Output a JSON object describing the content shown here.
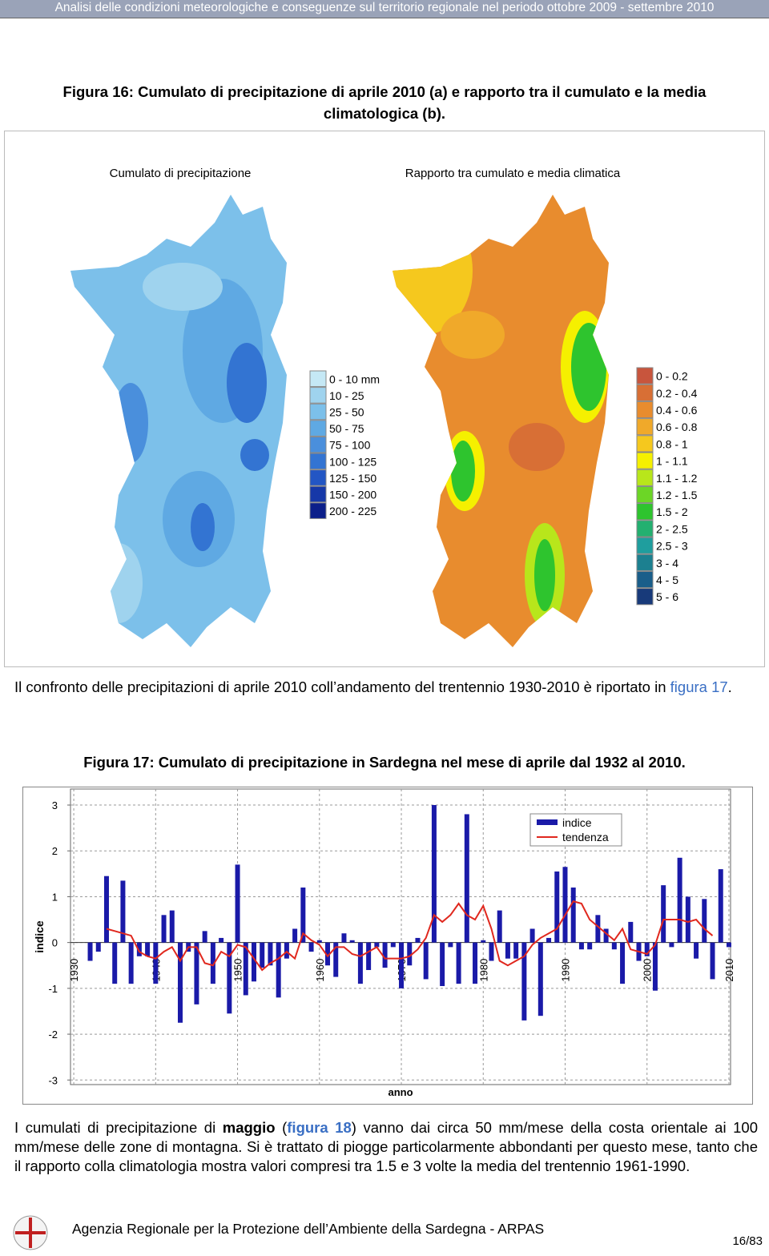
{
  "header": {
    "title": "Analisi delle condizioni meteorologiche e conseguenze sul territorio regionale nel periodo ottobre 2009 - settembre 2010"
  },
  "figure16": {
    "caption": "Figura 16: Cumulato di precipitazione di aprile 2010 (a) e rapporto tra il cumulato e la media climatologica (b).",
    "map_a": {
      "title": "Cumulato di precipitazione",
      "legend": [
        {
          "label": "0 - 10 mm",
          "color": "#c5e8f5"
        },
        {
          "label": "10 - 25",
          "color": "#9fd3ee"
        },
        {
          "label": "25 - 50",
          "color": "#7cc0ea"
        },
        {
          "label": "50 - 75",
          "color": "#5fa9e3"
        },
        {
          "label": "75 - 100",
          "color": "#4a8fdc"
        },
        {
          "label": "100 - 125",
          "color": "#3374d2"
        },
        {
          "label": "125 - 150",
          "color": "#2356c4"
        },
        {
          "label": "150 - 200",
          "color": "#1638a8"
        },
        {
          "label": "200 - 225",
          "color": "#0c1f8a"
        }
      ]
    },
    "map_b": {
      "title": "Rapporto tra cumulato e media climatica",
      "legend": [
        {
          "label": "0 - 0.2",
          "color": "#c8553d"
        },
        {
          "label": "0.2 - 0.4",
          "color": "#d86f35"
        },
        {
          "label": "0.4 - 0.6",
          "color": "#e88c2e"
        },
        {
          "label": "0.6 - 0.8",
          "color": "#f0a92a"
        },
        {
          "label": "0.8 - 1",
          "color": "#f5c81e"
        },
        {
          "label": "1 - 1.1",
          "color": "#f5f000"
        },
        {
          "label": "1.1 - 1.2",
          "color": "#b8e61b"
        },
        {
          "label": "1.2 - 1.5",
          "color": "#6cd626"
        },
        {
          "label": "1.5 - 2",
          "color": "#2ec42e"
        },
        {
          "label": "2 - 2.5",
          "color": "#23b070"
        },
        {
          "label": "2.5 - 3",
          "color": "#1f9e9e"
        },
        {
          "label": "3 - 4",
          "color": "#1c8090"
        },
        {
          "label": "4 - 5",
          "color": "#1a5e8a"
        },
        {
          "label": "5 - 6",
          "color": "#183a7a"
        }
      ]
    }
  },
  "paragraph1": {
    "parts": [
      "Il confronto delle precipitazioni di aprile 2010 coll’andamento del trentennio 1930-2010 è riportato in ",
      "figura 17",
      "."
    ]
  },
  "figure17": {
    "caption": "Figura 17: Cumulato di precipitazione in Sardegna nel mese di aprile dal 1932 al 2010."
  },
  "chart_data": {
    "type": "bar",
    "xlabel": "anno",
    "ylabel": "indice",
    "x": [
      1932,
      1933,
      1934,
      1935,
      1936,
      1937,
      1938,
      1939,
      1940,
      1941,
      1942,
      1943,
      1944,
      1945,
      1946,
      1947,
      1948,
      1949,
      1950,
      1951,
      1952,
      1953,
      1954,
      1955,
      1956,
      1957,
      1958,
      1959,
      1960,
      1961,
      1962,
      1963,
      1964,
      1965,
      1966,
      1967,
      1968,
      1969,
      1970,
      1971,
      1972,
      1973,
      1974,
      1975,
      1976,
      1977,
      1978,
      1979,
      1980,
      1981,
      1982,
      1983,
      1984,
      1985,
      1986,
      1987,
      1988,
      1989,
      1990,
      1991,
      1992,
      1993,
      1994,
      1995,
      1996,
      1997,
      1998,
      1999,
      2000,
      2001,
      2002,
      2003,
      2004,
      2005,
      2006,
      2007,
      2008,
      2009,
      2010
    ],
    "series": [
      {
        "name": "indice",
        "color": "#1a1aa8",
        "values": [
          -0.4,
          -0.2,
          1.45,
          -0.9,
          1.35,
          -0.9,
          -0.3,
          -0.3,
          -0.9,
          0.6,
          0.7,
          -1.75,
          -0.2,
          -1.35,
          0.25,
          -0.9,
          0.1,
          -1.55,
          1.7,
          -1.15,
          -0.85,
          -0.55,
          -0.5,
          -1.2,
          -0.35,
          0.3,
          1.2,
          -0.2,
          0.05,
          -0.5,
          -0.75,
          0.2,
          0.05,
          -0.9,
          -0.6,
          -0.1,
          -0.55,
          -0.1,
          -1.0,
          -0.5,
          0.1,
          -0.8,
          3.0,
          -0.95,
          -0.1,
          -0.9,
          2.8,
          -0.9,
          0.05,
          -0.4,
          0.7,
          -0.35,
          -0.35,
          -1.7,
          0.3,
          -1.6,
          0.1,
          1.55,
          1.65,
          1.2,
          -0.15,
          -0.15,
          0.6,
          0.3,
          -0.15,
          -0.9,
          0.45,
          -0.4,
          -0.3,
          -1.05,
          1.25,
          -0.1,
          1.85,
          1.0,
          -0.35,
          0.95,
          -0.8,
          1.6,
          -0.1
        ]
      },
      {
        "name": "tendenza",
        "color": "#e0281e",
        "type": "line",
        "values": [
          null,
          null,
          0.3,
          0.25,
          0.2,
          0.15,
          -0.2,
          -0.3,
          -0.35,
          -0.2,
          -0.1,
          -0.4,
          -0.1,
          -0.1,
          -0.45,
          -0.5,
          -0.2,
          -0.3,
          -0.05,
          -0.1,
          -0.35,
          -0.6,
          -0.45,
          -0.35,
          -0.2,
          -0.35,
          0.2,
          0.05,
          -0.05,
          -0.3,
          -0.1,
          -0.1,
          -0.25,
          -0.3,
          -0.2,
          -0.1,
          -0.35,
          -0.35,
          -0.35,
          -0.3,
          -0.15,
          0.1,
          0.6,
          0.45,
          0.6,
          0.85,
          0.6,
          0.5,
          0.8,
          0.3,
          -0.4,
          -0.5,
          -0.4,
          -0.3,
          -0.05,
          0.1,
          0.2,
          0.3,
          0.6,
          0.9,
          0.85,
          0.5,
          0.35,
          0.2,
          0.05,
          0.3,
          -0.15,
          -0.2,
          -0.25,
          -0.05,
          0.5,
          0.5,
          0.5,
          0.45,
          0.5,
          0.3,
          0.15,
          null,
          null
        ]
      }
    ],
    "xlim": [
      1929.6,
      2010.2
    ],
    "xticks": [
      1930,
      1940,
      1950,
      1960,
      1970,
      1980,
      1990,
      2000,
      2010
    ],
    "ylim": [
      -3.1,
      3.35
    ],
    "yticks": [
      -3,
      -2,
      -1,
      0,
      1,
      2,
      3
    ],
    "grid": true,
    "legend": "upper right"
  },
  "paragraph2": {
    "parts": [
      "I cumulati di precipitazione di ",
      "maggio",
      " (",
      "figura 18",
      ") vanno dai circa 50 mm/mese della costa orientale ai 100 mm/mese delle zone di montagna. Si è trattato di piogge particolarmente abbondanti per questo mese, tanto che il rapporto colla climatologia mostra valori compresi tra 1.5 e 3 volte la media del trentennio 1961-1990."
    ]
  },
  "footer": {
    "agency": "Agenzia Regionale per la Protezione dell’Ambiente della Sardegna - ARPAS",
    "page": "16/83"
  }
}
